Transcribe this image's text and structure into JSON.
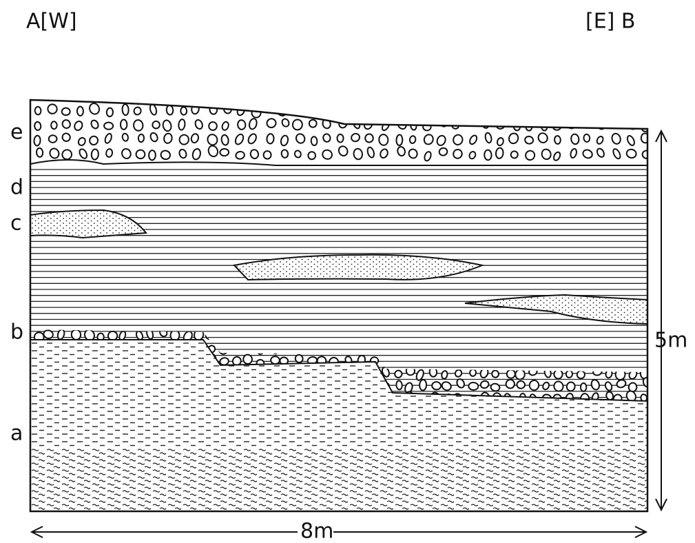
{
  "header": {
    "left": "A[W]",
    "right": "[E] B"
  },
  "layers": [
    {
      "label": "e"
    },
    {
      "label": "d"
    },
    {
      "label": "c"
    },
    {
      "label": "b"
    },
    {
      "label": "a"
    }
  ],
  "scale": {
    "height": "5m",
    "width": "8m"
  }
}
